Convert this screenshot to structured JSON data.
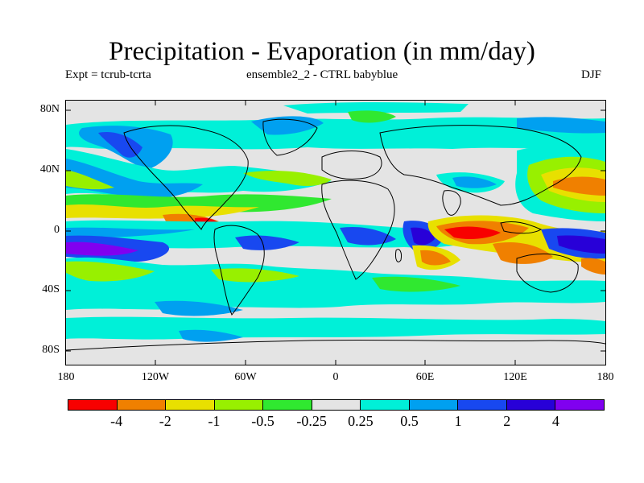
{
  "title": "Precipitation - Evaporation (in mm/day)",
  "subtitle_left": "Expt = tcrub-tcrta",
  "subtitle_center": "ensemble2_2 - CTRL babyblue",
  "subtitle_right": "DJF",
  "map": {
    "projection": "cylindrical equidistant",
    "variable": "P-E difference (mm/day)",
    "lat_ticks": [
      "80N",
      "40N",
      "0",
      "40S",
      "80S"
    ],
    "lon_ticks": [
      "180",
      "120W",
      "60W",
      "0",
      "60E",
      "120E",
      "180"
    ]
  },
  "colorbar": {
    "colors": [
      "#f80000",
      "#f08000",
      "#e8e000",
      "#98f000",
      "#30e830",
      "#e4e4e4",
      "#00f0d8",
      "#00a0f0",
      "#1848f0",
      "#2800d8",
      "#8000f0"
    ],
    "labels": [
      "-4",
      "-2",
      "-1",
      "-0.5",
      "-0.25",
      "0.25",
      "0.5",
      "1",
      "2",
      "4"
    ]
  }
}
